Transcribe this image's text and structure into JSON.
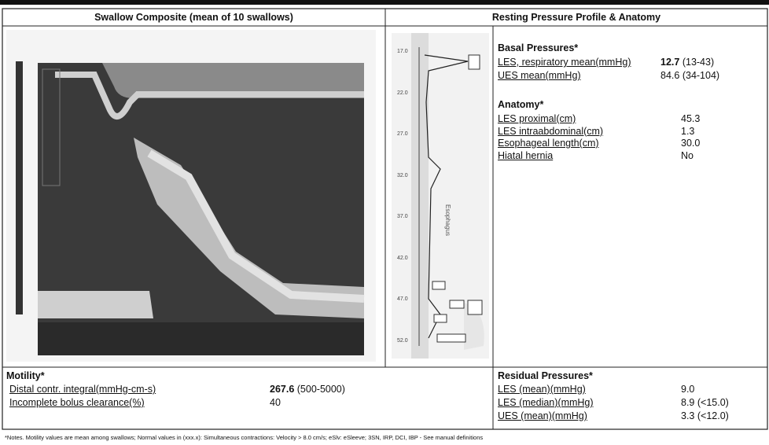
{
  "header": {
    "left_title": "Swallow Composite (mean of 10 swallows)",
    "right_title": "Resting Pressure Profile & Anatomy"
  },
  "profile": {
    "axis_label": "Esophagus",
    "depths": [
      "17.0",
      "22.0",
      "27.0",
      "32.0",
      "37.0",
      "42.0",
      "47.0",
      "52.0"
    ]
  },
  "basal": {
    "title": "Basal Pressures*",
    "rows": [
      {
        "label": "LES, respiratory mean(mmHg)",
        "value": "12.7",
        "range": "(13-43)"
      },
      {
        "label": "UES mean(mmHg)",
        "value": "84.6",
        "range": "(34-104)"
      }
    ]
  },
  "anatomy": {
    "title": "Anatomy*",
    "rows": [
      {
        "label": "LES proximal(cm)",
        "value": "45.3"
      },
      {
        "label": "LES intraabdominal(cm)",
        "value": "1.3"
      },
      {
        "label": "Esophageal length(cm)",
        "value": "30.0"
      },
      {
        "label": "Hiatal hernia",
        "value": "No"
      }
    ]
  },
  "motility": {
    "title": "Motility*",
    "rows": [
      {
        "label": "Distal contr. integral(mmHg-cm-s)",
        "value": "267.6",
        "range": "(500-5000)"
      },
      {
        "label": "Incomplete bolus clearance(%)",
        "value": "40"
      }
    ]
  },
  "residual": {
    "title": "Residual Pressures*",
    "rows": [
      {
        "label": "LES (mean)(mmHg)",
        "value": "9.0"
      },
      {
        "label": "LES (median)(mmHg)",
        "value": "8.9",
        "range": "(<15.0)"
      },
      {
        "label": "UES (mean)(mmHg)",
        "value": "3.3",
        "range": "(<12.0)"
      }
    ]
  },
  "footnote": "*Notes. Motility values are mean among swallows; Normal values in (xxx.x): Simultaneous contractions: Velocity > 8.0 cm/s; eSlv: eSleeve; 3SN, IRP, DCI, IBP - See manual definitions"
}
